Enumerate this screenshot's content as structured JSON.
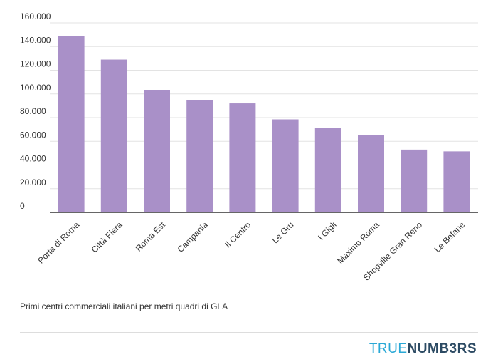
{
  "chart_data": {
    "type": "bar",
    "categories": [
      "Porta di Roma",
      "Città Fiera",
      "Roma Est",
      "Campania",
      "Il Centro",
      "Le Gru",
      "I Gigli",
      "Maximo Roma",
      "Shopville Gran Reno",
      "Le Befane"
    ],
    "values": [
      149000,
      129000,
      103000,
      95000,
      92000,
      78500,
      71000,
      65000,
      53000,
      51500
    ],
    "ylim": [
      0,
      160000
    ],
    "yticks": [
      0,
      20000,
      40000,
      60000,
      80000,
      100000,
      120000,
      140000,
      160000
    ],
    "ytick_labels": [
      "0",
      "20.000",
      "40.000",
      "60.000",
      "80.000",
      "100.000",
      "120.000",
      "140.000",
      "160.000"
    ],
    "grid": true,
    "bar_color": "#a990c8",
    "caption": "Primi centri commerciali italiani per metri quadri di GLA"
  },
  "brand": {
    "part1": "TRUE",
    "part2": "NUMB3RS"
  },
  "colors": {
    "bar": "#a990c8",
    "grid": "#e3e3e3",
    "axis": "#333333",
    "brand_light": "#29a8d6",
    "brand_dark": "#2c4a63"
  }
}
